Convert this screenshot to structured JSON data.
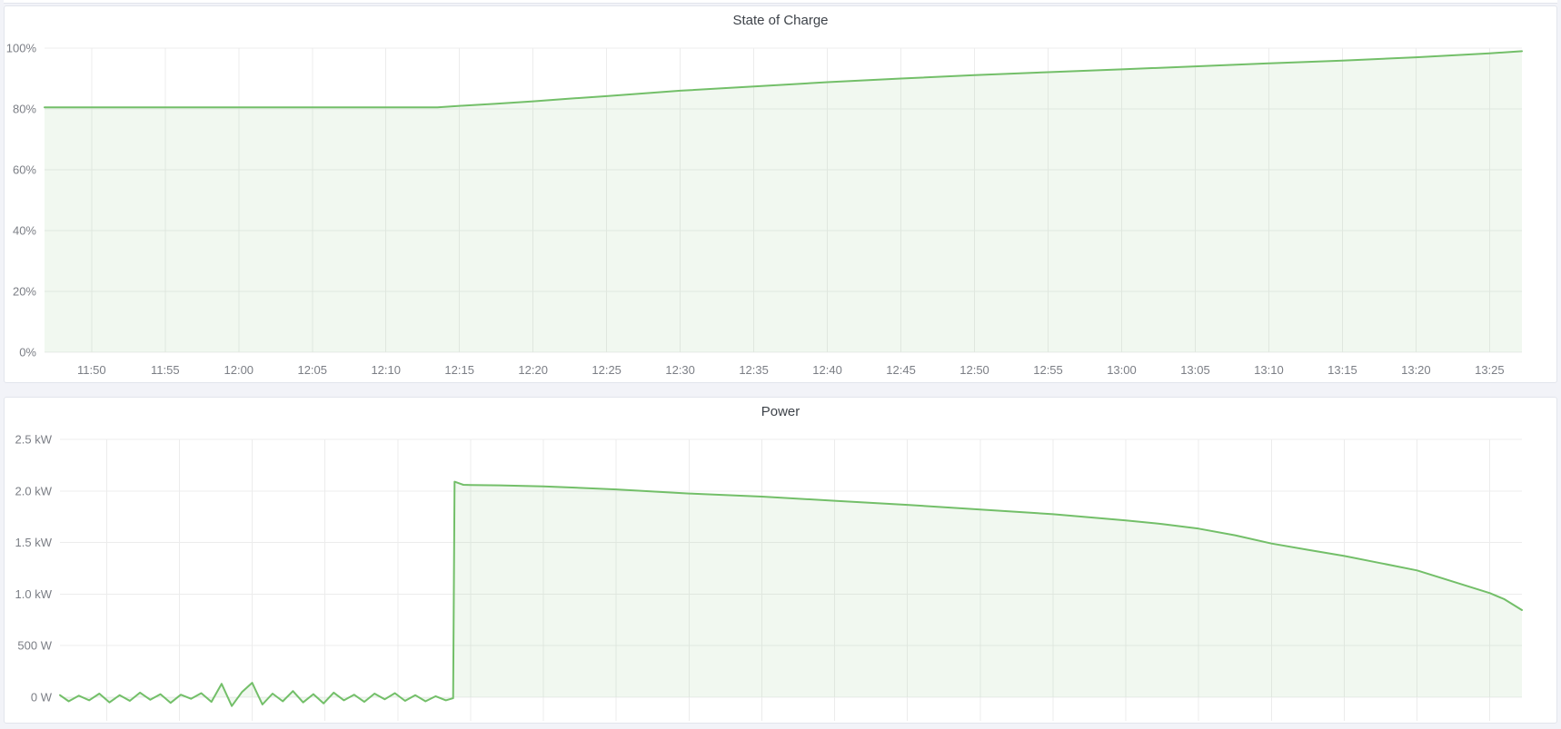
{
  "page": {
    "background_color": "#f2f3f8",
    "panel_background": "#ffffff",
    "panel_border_color": "#e2e5ec"
  },
  "colors": {
    "series_line": "#73bf69",
    "series_fill": "rgba(115,191,105,0.10)",
    "grid_line": "#ececec",
    "axis_label": "#7b7e85",
    "panel_title": "#3e434a"
  },
  "time_axis": {
    "start_minutes": 706.8,
    "end_minutes": 807.2,
    "ticks": [
      {
        "minutes": 710,
        "label": "11:50"
      },
      {
        "minutes": 715,
        "label": "11:55"
      },
      {
        "minutes": 720,
        "label": "12:00"
      },
      {
        "minutes": 725,
        "label": "12:05"
      },
      {
        "minutes": 730,
        "label": "12:10"
      },
      {
        "minutes": 735,
        "label": "12:15"
      },
      {
        "minutes": 740,
        "label": "12:20"
      },
      {
        "minutes": 745,
        "label": "12:25"
      },
      {
        "minutes": 750,
        "label": "12:30"
      },
      {
        "minutes": 755,
        "label": "12:35"
      },
      {
        "minutes": 760,
        "label": "12:40"
      },
      {
        "minutes": 765,
        "label": "12:45"
      },
      {
        "minutes": 770,
        "label": "12:50"
      },
      {
        "minutes": 775,
        "label": "12:55"
      },
      {
        "minutes": 780,
        "label": "13:00"
      },
      {
        "minutes": 785,
        "label": "13:05"
      },
      {
        "minutes": 790,
        "label": "13:10"
      },
      {
        "minutes": 795,
        "label": "13:15"
      },
      {
        "minutes": 800,
        "label": "13:20"
      },
      {
        "minutes": 805,
        "label": "13:25"
      }
    ]
  },
  "chart_data": [
    {
      "type": "area",
      "title": "State of Charge",
      "unit": "percent",
      "ylim": [
        0,
        100
      ],
      "grid": true,
      "legend": "none",
      "x_axis_note": "time of day, ticks every 5 min from 11:50 to 13:25",
      "yticks": [
        {
          "value": 0,
          "label": "0%"
        },
        {
          "value": 20,
          "label": "20%"
        },
        {
          "value": 40,
          "label": "40%"
        },
        {
          "value": 60,
          "label": "60%"
        },
        {
          "value": 80,
          "label": "80%"
        },
        {
          "value": 100,
          "label": "100%"
        }
      ],
      "series": [
        {
          "name": "State of Charge",
          "x_minutes": [
            706.8,
            710,
            715,
            720,
            725,
            730,
            733.5,
            735,
            737.5,
            740,
            742.5,
            745,
            750,
            755,
            760,
            765,
            770,
            775,
            780,
            785,
            790,
            795,
            800,
            805,
            807.2
          ],
          "values": [
            80.5,
            80.5,
            80.5,
            80.5,
            80.5,
            80.5,
            80.5,
            81.0,
            81.7,
            82.5,
            83.4,
            84.2,
            86.0,
            87.4,
            88.8,
            90.0,
            91.1,
            92.1,
            93.0,
            94.0,
            95.0,
            95.9,
            97.0,
            98.3,
            99.0
          ]
        }
      ]
    },
    {
      "type": "area",
      "title": "Power",
      "unit": "watt",
      "ylim": [
        0,
        2500
      ],
      "grid": true,
      "legend": "none",
      "x_axis_note": "same time range as State of Charge; tick labels cut off at bottom of screenshot",
      "yticks": [
        {
          "value": 0,
          "label": "0 W"
        },
        {
          "value": 500,
          "label": "500 W"
        },
        {
          "value": 1000,
          "label": "1.0 kW"
        },
        {
          "value": 1500,
          "label": "1.5 kW"
        },
        {
          "value": 2000,
          "label": "2.0 kW"
        },
        {
          "value": 2500,
          "label": "2.5 kW"
        }
      ],
      "series": [
        {
          "name": "Power",
          "x_minutes": [
            706.8,
            707.4,
            708.1,
            708.8,
            709.5,
            710.2,
            710.9,
            711.6,
            712.3,
            713,
            713.7,
            714.4,
            715.1,
            715.8,
            716.5,
            717.2,
            717.9,
            718.6,
            719.3,
            720,
            720.7,
            721.4,
            722.1,
            722.8,
            723.5,
            724.2,
            724.9,
            725.6,
            726.3,
            727,
            727.7,
            728.4,
            729.1,
            729.8,
            730.5,
            731.2,
            731.9,
            732.6,
            733.3,
            733.8,
            733.9,
            734.5,
            735,
            737,
            740,
            745,
            750,
            755,
            760,
            765,
            770,
            775,
            780,
            782.5,
            785,
            787.5,
            790,
            792.5,
            795,
            797.5,
            800,
            802.5,
            805,
            806,
            807.2
          ],
          "values": [
            20,
            -40,
            15,
            -30,
            35,
            -50,
            20,
            -35,
            45,
            -25,
            30,
            -55,
            25,
            -15,
            40,
            -45,
            130,
            -85,
            50,
            140,
            -70,
            35,
            -40,
            60,
            -50,
            30,
            -60,
            45,
            -30,
            25,
            -45,
            35,
            -20,
            40,
            -35,
            20,
            -40,
            10,
            -30,
            -10,
            2090,
            2060,
            2058,
            2055,
            2045,
            2015,
            1975,
            1945,
            1905,
            1865,
            1820,
            1775,
            1715,
            1680,
            1635,
            1570,
            1490,
            1430,
            1370,
            1300,
            1230,
            1120,
            1010,
            950,
            845
          ]
        }
      ]
    }
  ]
}
